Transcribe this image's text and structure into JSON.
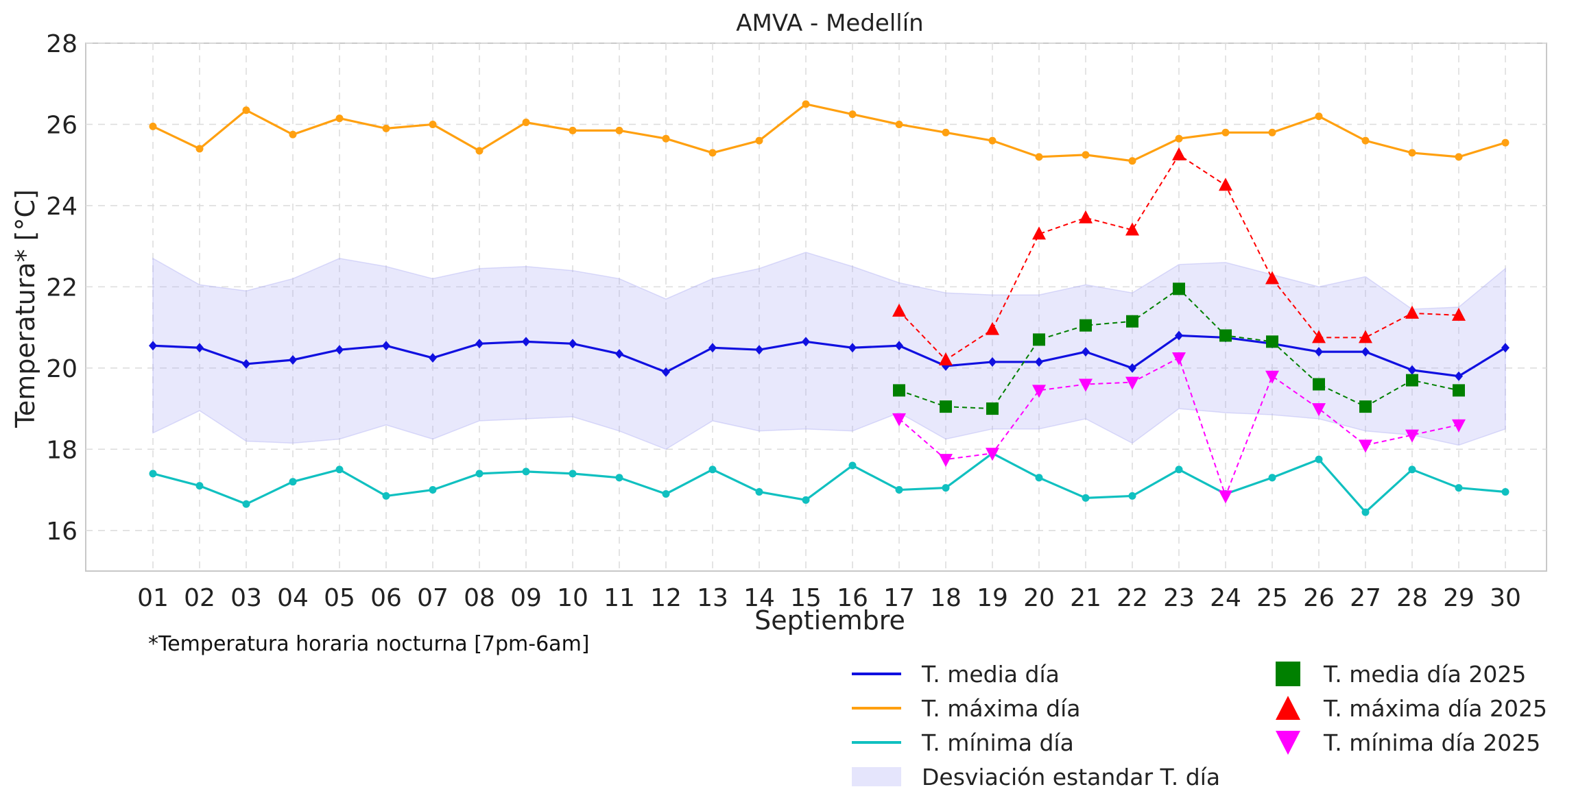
{
  "chart_data": {
    "type": "line",
    "title": "AMVA - Medellín",
    "xlabel": "Septiembre",
    "ylabel": "Temperatura* [°C]",
    "ylim": [
      15,
      28
    ],
    "yticks": [
      16,
      18,
      20,
      22,
      24,
      26,
      28
    ],
    "grid": true,
    "legend_position": "bottom-right",
    "categories": [
      "01",
      "02",
      "03",
      "04",
      "05",
      "06",
      "07",
      "08",
      "09",
      "10",
      "11",
      "12",
      "13",
      "14",
      "15",
      "16",
      "17",
      "18",
      "19",
      "20",
      "21",
      "22",
      "23",
      "24",
      "25",
      "26",
      "27",
      "28",
      "29",
      "30"
    ],
    "band": {
      "name": "Desviación estandar T. día",
      "color": "#b4b4f5",
      "upper": [
        22.7,
        22.05,
        21.9,
        22.2,
        22.7,
        22.5,
        22.2,
        22.45,
        22.5,
        22.4,
        22.2,
        21.7,
        22.2,
        22.45,
        22.85,
        22.5,
        22.1,
        21.85,
        21.8,
        21.8,
        22.05,
        21.85,
        22.55,
        22.6,
        22.3,
        22.0,
        22.25,
        21.45,
        21.5,
        22.45
      ],
      "lower": [
        18.4,
        18.95,
        18.2,
        18.15,
        18.25,
        18.6,
        18.25,
        18.7,
        18.75,
        18.8,
        18.45,
        18.0,
        18.7,
        18.45,
        18.5,
        18.45,
        18.9,
        18.25,
        18.5,
        18.5,
        18.75,
        18.15,
        19.0,
        18.9,
        18.85,
        18.75,
        18.45,
        18.35,
        18.1,
        18.5
      ]
    },
    "series": [
      {
        "name": "T. media día",
        "color": "#1010e0",
        "style": "solid",
        "marker": "diamond",
        "values": [
          20.55,
          20.5,
          20.1,
          20.2,
          20.45,
          20.55,
          20.25,
          20.6,
          20.65,
          20.6,
          20.35,
          19.9,
          20.5,
          20.45,
          20.65,
          20.5,
          20.55,
          20.05,
          20.15,
          20.15,
          20.4,
          20.0,
          20.8,
          20.75,
          20.6,
          20.4,
          20.4,
          19.95,
          19.8,
          20.5
        ]
      },
      {
        "name": "T. máxima día",
        "color": "#ffa010",
        "style": "solid",
        "marker": "circle",
        "values": [
          25.95,
          25.4,
          26.35,
          25.75,
          26.15,
          25.9,
          26.0,
          25.35,
          26.05,
          25.85,
          25.85,
          25.65,
          25.3,
          25.6,
          26.5,
          26.25,
          26.0,
          25.8,
          25.6,
          25.2,
          25.25,
          25.1,
          25.65,
          25.8,
          25.8,
          26.2,
          25.6,
          25.3,
          25.2,
          25.55
        ]
      },
      {
        "name": "T. mínima día",
        "color": "#10c0c0",
        "style": "solid",
        "marker": "circle",
        "values": [
          17.4,
          17.1,
          16.65,
          17.2,
          17.5,
          16.85,
          17.0,
          17.4,
          17.45,
          17.4,
          17.3,
          16.9,
          17.5,
          16.95,
          16.75,
          17.6,
          17.0,
          17.05,
          17.9,
          17.3,
          16.8,
          16.85,
          17.5,
          16.9,
          17.3,
          17.75,
          16.45,
          17.5,
          17.05,
          16.95
        ]
      },
      {
        "name": "T. media día 2025",
        "color": "#008000",
        "style": "dashed",
        "marker": "square",
        "values": [
          null,
          null,
          null,
          null,
          null,
          null,
          null,
          null,
          null,
          null,
          null,
          null,
          null,
          null,
          null,
          null,
          19.45,
          19.05,
          19.0,
          20.7,
          21.05,
          21.15,
          21.95,
          20.8,
          20.65,
          19.6,
          19.05,
          19.7,
          19.45,
          null
        ]
      },
      {
        "name": "T. máxima día 2025",
        "color": "#ff0000",
        "style": "dashed",
        "marker": "triangle-up",
        "values": [
          null,
          null,
          null,
          null,
          null,
          null,
          null,
          null,
          null,
          null,
          null,
          null,
          null,
          null,
          null,
          null,
          21.4,
          20.2,
          20.95,
          23.3,
          23.7,
          23.4,
          25.25,
          24.5,
          22.2,
          20.75,
          20.75,
          21.35,
          21.3,
          null
        ]
      },
      {
        "name": "T. mínima día 2025",
        "color": "#ff00ff",
        "style": "dashed",
        "marker": "triangle-down",
        "values": [
          null,
          null,
          null,
          null,
          null,
          null,
          null,
          null,
          null,
          null,
          null,
          null,
          null,
          null,
          null,
          null,
          18.75,
          17.75,
          17.9,
          19.45,
          19.6,
          19.65,
          20.25,
          16.85,
          19.8,
          19.0,
          18.1,
          18.35,
          18.6,
          null
        ]
      }
    ]
  },
  "note": "*Temperatura horaria nocturna [7pm-6am]",
  "legend": {
    "media": "T. media día",
    "maxima": "T. máxima día",
    "minima": "T. mínima día",
    "band": "Desviación estandar T. día",
    "media_2025": "T. media día 2025",
    "maxima_2025": "T. máxima día 2025",
    "minima_2025": "T. mínima día 2025"
  }
}
